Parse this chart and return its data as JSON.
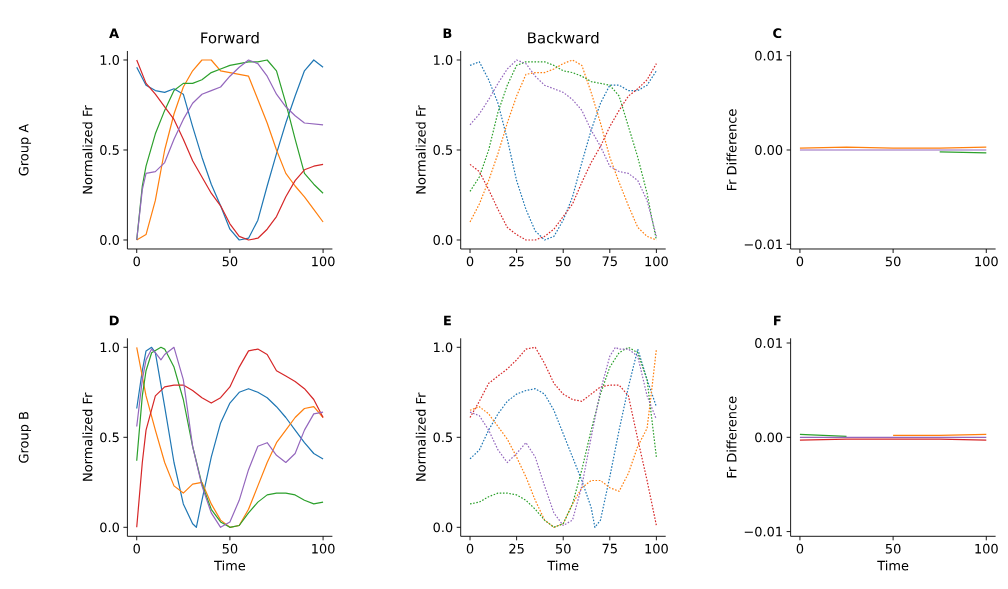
{
  "chart_data": [
    {
      "type": "line",
      "title": "Forward",
      "ylabel": "Normalized Fr",
      "annotations": [
        "A",
        "Group A"
      ],
      "xlim": [
        -5,
        105
      ],
      "ylim": [
        -0.05,
        1.05
      ],
      "xticks": [
        0,
        50,
        100
      ],
      "yticks": [
        {
          "value": 0,
          "label": "0.0"
        },
        {
          "value": 0.5,
          "label": "0.5"
        },
        {
          "value": 1,
          "label": "1.0"
        }
      ],
      "series": [
        {
          "color": "#1f77b4",
          "x": [
            0,
            5,
            10,
            15,
            20,
            25,
            30,
            35,
            40,
            45,
            50,
            55,
            60,
            65,
            70,
            75,
            80,
            85,
            90,
            95,
            100
          ],
          "values": [
            0.96,
            0.86,
            0.83,
            0.82,
            0.84,
            0.81,
            0.63,
            0.46,
            0.31,
            0.19,
            0.06,
            0,
            0.01,
            0.11,
            0.3,
            0.48,
            0.65,
            0.8,
            0.94,
            1.0,
            0.96
          ]
        },
        {
          "color": "#ff7f0e",
          "x": [
            0,
            5,
            10,
            15,
            20,
            25,
            30,
            35,
            40,
            45,
            50,
            55,
            60,
            65,
            70,
            75,
            80,
            85,
            90,
            95,
            100
          ],
          "values": [
            0,
            0.03,
            0.22,
            0.5,
            0.7,
            0.85,
            0.94,
            1.0,
            1.0,
            0.94,
            0.93,
            0.92,
            0.91,
            0.78,
            0.65,
            0.5,
            0.37,
            0.3,
            0.24,
            0.17,
            0.1
          ]
        },
        {
          "color": "#2ca02c",
          "x": [
            0,
            3,
            5,
            10,
            15,
            20,
            25,
            30,
            35,
            40,
            45,
            50,
            55,
            60,
            65,
            70,
            75,
            80,
            85,
            90,
            95,
            100
          ],
          "values": [
            0,
            0.3,
            0.41,
            0.59,
            0.72,
            0.83,
            0.87,
            0.87,
            0.89,
            0.93,
            0.95,
            0.97,
            0.98,
            0.99,
            0.99,
            1.0,
            0.94,
            0.76,
            0.56,
            0.37,
            0.31,
            0.26
          ]
        },
        {
          "color": "#d62728",
          "x": [
            0,
            5,
            10,
            15,
            20,
            25,
            30,
            35,
            40,
            45,
            50,
            55,
            60,
            65,
            70,
            75,
            80,
            85,
            90,
            95,
            100
          ],
          "values": [
            1.0,
            0.87,
            0.81,
            0.74,
            0.67,
            0.56,
            0.44,
            0.35,
            0.26,
            0.19,
            0.09,
            0.02,
            0,
            0.01,
            0.06,
            0.13,
            0.24,
            0.33,
            0.39,
            0.41,
            0.42
          ]
        },
        {
          "color": "#9467bd",
          "x": [
            0,
            3,
            5,
            10,
            15,
            20,
            25,
            30,
            35,
            40,
            45,
            50,
            55,
            60,
            65,
            70,
            75,
            80,
            85,
            90,
            100
          ],
          "values": [
            0,
            0.28,
            0.37,
            0.38,
            0.43,
            0.56,
            0.67,
            0.76,
            0.81,
            0.83,
            0.85,
            0.91,
            0.96,
            1.0,
            0.98,
            0.91,
            0.81,
            0.74,
            0.69,
            0.65,
            0.64
          ]
        }
      ]
    },
    {
      "type": "line",
      "title": "Backward",
      "ylabel": "Normalized Fr",
      "annotations": [
        "B"
      ],
      "line_style": "dotted",
      "xlim": [
        -5,
        105
      ],
      "ylim": [
        -0.05,
        1.05
      ],
      "xticks": [
        0,
        25,
        50,
        75,
        100
      ],
      "yticks": [
        {
          "value": 0,
          "label": "0.0"
        },
        {
          "value": 0.5,
          "label": "0.5"
        },
        {
          "value": 1,
          "label": "1.0"
        }
      ],
      "series": [
        {
          "color": "#1f77b4",
          "x": [
            0,
            5,
            10,
            15,
            20,
            25,
            30,
            35,
            40,
            45,
            50,
            55,
            60,
            65,
            70,
            75,
            80,
            85,
            90,
            95,
            100
          ],
          "values": [
            0.97,
            0.99,
            0.89,
            0.76,
            0.56,
            0.33,
            0.17,
            0.05,
            0,
            0.02,
            0.11,
            0.24,
            0.43,
            0.61,
            0.76,
            0.86,
            0.86,
            0.83,
            0.83,
            0.86,
            0.94
          ]
        },
        {
          "color": "#ff7f0e",
          "x": [
            0,
            5,
            10,
            15,
            20,
            25,
            30,
            35,
            40,
            45,
            50,
            55,
            60,
            65,
            70,
            75,
            80,
            85,
            90,
            95,
            100
          ],
          "values": [
            0.1,
            0.2,
            0.33,
            0.48,
            0.65,
            0.8,
            0.92,
            0.93,
            0.93,
            0.95,
            0.98,
            1.0,
            0.97,
            0.82,
            0.65,
            0.46,
            0.32,
            0.19,
            0.07,
            0.02,
            0
          ]
        },
        {
          "color": "#2ca02c",
          "x": [
            0,
            5,
            10,
            15,
            20,
            25,
            30,
            35,
            40,
            45,
            50,
            55,
            60,
            65,
            70,
            75,
            80,
            85,
            90,
            95,
            97,
            100
          ],
          "values": [
            0.27,
            0.35,
            0.5,
            0.71,
            0.86,
            0.97,
            0.99,
            0.99,
            0.99,
            0.97,
            0.94,
            0.93,
            0.91,
            0.88,
            0.87,
            0.86,
            0.8,
            0.63,
            0.46,
            0.26,
            0.15,
            0
          ]
        },
        {
          "color": "#d62728",
          "x": [
            0,
            5,
            10,
            15,
            20,
            25,
            30,
            35,
            40,
            45,
            50,
            55,
            60,
            65,
            70,
            75,
            80,
            85,
            90,
            95,
            100
          ],
          "values": [
            0.42,
            0.38,
            0.28,
            0.17,
            0.07,
            0.03,
            0,
            0,
            0.02,
            0.06,
            0.13,
            0.2,
            0.32,
            0.43,
            0.52,
            0.63,
            0.72,
            0.8,
            0.84,
            0.89,
            0.98
          ]
        },
        {
          "color": "#9467bd",
          "x": [
            0,
            5,
            10,
            15,
            20,
            25,
            30,
            35,
            40,
            45,
            50,
            55,
            60,
            65,
            70,
            75,
            80,
            85,
            90,
            95,
            100
          ],
          "values": [
            0.64,
            0.7,
            0.78,
            0.87,
            0.95,
            1.0,
            0.98,
            0.91,
            0.86,
            0.84,
            0.82,
            0.78,
            0.72,
            0.61,
            0.52,
            0.41,
            0.38,
            0.37,
            0.33,
            0.22,
            0.02
          ]
        }
      ]
    },
    {
      "type": "line",
      "ylabel": "Fr Difference",
      "annotations": [
        "C"
      ],
      "xlim": [
        -5,
        105
      ],
      "ylim": [
        -0.0105,
        0.0105
      ],
      "xticks": [
        0,
        50,
        100
      ],
      "yticks": [
        {
          "value": -0.01,
          "label": "−0.01"
        },
        {
          "value": 0,
          "label": "0.00"
        },
        {
          "value": 0.01,
          "label": "0.01"
        }
      ],
      "x": [
        0,
        25,
        50,
        75,
        100
      ],
      "series": [
        {
          "color": "#1f77b4",
          "values": [
            null,
            null,
            null,
            null,
            null
          ]
        },
        {
          "color": "#ff7f0e",
          "values": [
            0.0002,
            0.0003,
            0.0002,
            0.0002,
            0.0003
          ]
        },
        {
          "color": "#2ca02c",
          "values": [
            null,
            null,
            null,
            -0.0002,
            -0.0003
          ]
        },
        {
          "color": "#d62728",
          "values": [
            null,
            null,
            null,
            null,
            null
          ]
        },
        {
          "color": "#9467bd",
          "values": [
            0,
            0,
            0,
            0,
            0
          ]
        }
      ]
    },
    {
      "type": "line",
      "xlabel": "Time",
      "ylabel": "Normalized Fr",
      "annotations": [
        "D",
        "Group B"
      ],
      "xlim": [
        -5,
        105
      ],
      "ylim": [
        -0.05,
        1.05
      ],
      "xticks": [
        0,
        50,
        100
      ],
      "yticks": [
        {
          "value": 0,
          "label": "0.0"
        },
        {
          "value": 0.5,
          "label": "0.5"
        },
        {
          "value": 1,
          "label": "1.0"
        }
      ],
      "series": [
        {
          "color": "#1f77b4",
          "x": [
            0,
            3,
            5,
            8,
            10,
            15,
            20,
            25,
            30,
            32,
            35,
            40,
            45,
            50,
            55,
            60,
            65,
            70,
            75,
            80,
            85,
            90,
            95,
            100
          ],
          "values": [
            0.66,
            0.87,
            0.98,
            1.0,
            0.97,
            0.67,
            0.36,
            0.13,
            0.02,
            0,
            0.15,
            0.39,
            0.58,
            0.69,
            0.75,
            0.77,
            0.75,
            0.72,
            0.67,
            0.61,
            0.54,
            0.47,
            0.41,
            0.38
          ]
        },
        {
          "color": "#ff7f0e",
          "x": [
            0,
            5,
            10,
            15,
            20,
            25,
            30,
            35,
            40,
            45,
            50,
            55,
            60,
            65,
            70,
            75,
            80,
            85,
            90,
            95,
            100
          ],
          "values": [
            1.0,
            0.73,
            0.54,
            0.36,
            0.23,
            0.19,
            0.24,
            0.25,
            0.13,
            0.04,
            0,
            0.01,
            0.1,
            0.23,
            0.36,
            0.47,
            0.54,
            0.61,
            0.66,
            0.67,
            0.61
          ]
        },
        {
          "color": "#2ca02c",
          "x": [
            0,
            3,
            5,
            8,
            13,
            15,
            20,
            25,
            30,
            35,
            40,
            45,
            50,
            55,
            60,
            65,
            70,
            75,
            80,
            85,
            90,
            95,
            100
          ],
          "values": [
            0.37,
            0.73,
            0.87,
            0.97,
            1.0,
            0.99,
            0.89,
            0.71,
            0.45,
            0.24,
            0.1,
            0.03,
            0,
            0.01,
            0.08,
            0.14,
            0.18,
            0.19,
            0.19,
            0.18,
            0.15,
            0.13,
            0.14
          ]
        },
        {
          "color": "#d62728",
          "x": [
            0,
            3,
            5,
            10,
            15,
            20,
            25,
            30,
            35,
            40,
            45,
            50,
            55,
            60,
            65,
            70,
            75,
            80,
            85,
            90,
            95,
            100
          ],
          "values": [
            0,
            0.36,
            0.54,
            0.73,
            0.78,
            0.79,
            0.79,
            0.76,
            0.72,
            0.69,
            0.72,
            0.78,
            0.89,
            0.98,
            0.99,
            0.96,
            0.87,
            0.84,
            0.81,
            0.77,
            0.71,
            0.61
          ]
        },
        {
          "color": "#9467bd",
          "x": [
            0,
            3,
            5,
            8,
            10,
            13,
            15,
            20,
            25,
            30,
            35,
            40,
            45,
            50,
            55,
            60,
            65,
            70,
            75,
            80,
            85,
            90,
            95,
            100
          ],
          "values": [
            0.56,
            0.82,
            0.93,
            0.99,
            0.97,
            0.93,
            0.96,
            1.0,
            0.82,
            0.45,
            0.23,
            0.08,
            0,
            0.03,
            0.15,
            0.32,
            0.45,
            0.47,
            0.4,
            0.36,
            0.41,
            0.54,
            0.63,
            0.64
          ]
        }
      ]
    },
    {
      "type": "line",
      "xlabel": "Time",
      "ylabel": "Normalized Fr",
      "annotations": [
        "E"
      ],
      "line_style": "dotted",
      "xlim": [
        -5,
        105
      ],
      "ylim": [
        -0.05,
        1.05
      ],
      "xticks": [
        0,
        25,
        50,
        75,
        100
      ],
      "yticks": [
        {
          "value": 0,
          "label": "0.0"
        },
        {
          "value": 0.5,
          "label": "0.5"
        },
        {
          "value": 1,
          "label": "1.0"
        }
      ],
      "series": [
        {
          "color": "#d62728",
          "x": [
            0,
            5,
            10,
            15,
            20,
            25,
            30,
            35,
            40,
            45,
            50,
            55,
            60,
            65,
            70,
            75,
            80,
            85,
            90,
            95,
            100
          ],
          "values": [
            0.61,
            0.7,
            0.8,
            0.84,
            0.88,
            0.93,
            0.99,
            1.0,
            0.91,
            0.8,
            0.74,
            0.71,
            0.7,
            0.74,
            0.78,
            0.79,
            0.79,
            0.73,
            0.49,
            0.26,
            0.01
          ]
        },
        {
          "color": "#1f77b4",
          "x": [
            0,
            5,
            10,
            15,
            20,
            25,
            30,
            35,
            40,
            45,
            50,
            55,
            60,
            65,
            67,
            70,
            75,
            80,
            85,
            90,
            95,
            100
          ],
          "values": [
            0.38,
            0.43,
            0.54,
            0.63,
            0.7,
            0.74,
            0.76,
            0.77,
            0.74,
            0.65,
            0.52,
            0.39,
            0.26,
            0.11,
            0,
            0.04,
            0.28,
            0.54,
            0.78,
            0.99,
            0.82,
            0.67
          ]
        },
        {
          "color": "#ff7f0e",
          "x": [
            0,
            5,
            10,
            15,
            20,
            25,
            30,
            35,
            40,
            45,
            50,
            55,
            60,
            65,
            70,
            75,
            80,
            85,
            90,
            95,
            97,
            100
          ],
          "values": [
            0.65,
            0.67,
            0.63,
            0.56,
            0.49,
            0.39,
            0.28,
            0.15,
            0.04,
            0,
            0.02,
            0.13,
            0.22,
            0.26,
            0.26,
            0.22,
            0.2,
            0.3,
            0.45,
            0.55,
            0.72,
            0.99
          ]
        },
        {
          "color": "#2ca02c",
          "x": [
            0,
            5,
            10,
            15,
            20,
            25,
            30,
            35,
            40,
            45,
            50,
            55,
            60,
            65,
            70,
            75,
            80,
            85,
            90,
            95,
            100
          ],
          "values": [
            0.13,
            0.14,
            0.17,
            0.19,
            0.19,
            0.18,
            0.15,
            0.1,
            0.04,
            0,
            0.02,
            0.13,
            0.32,
            0.54,
            0.74,
            0.89,
            0.97,
            1.0,
            0.97,
            0.82,
            0.39
          ]
        },
        {
          "color": "#9467bd",
          "x": [
            0,
            5,
            10,
            15,
            20,
            25,
            30,
            35,
            40,
            45,
            50,
            55,
            60,
            65,
            70,
            75,
            78,
            80,
            85,
            90,
            95,
            100
          ],
          "values": [
            0.64,
            0.62,
            0.54,
            0.43,
            0.36,
            0.41,
            0.47,
            0.39,
            0.23,
            0.08,
            0.01,
            0.04,
            0.23,
            0.5,
            0.76,
            0.95,
            1.0,
            0.99,
            0.99,
            0.95,
            0.73,
            0.6
          ]
        }
      ]
    },
    {
      "type": "line",
      "xlabel": "Time",
      "ylabel": "Fr Difference",
      "annotations": [
        "F"
      ],
      "xlim": [
        -5,
        105
      ],
      "ylim": [
        -0.0105,
        0.0105
      ],
      "xticks": [
        0,
        50,
        100
      ],
      "yticks": [
        {
          "value": -0.01,
          "label": "−0.01"
        },
        {
          "value": 0,
          "label": "0.00"
        },
        {
          "value": 0.01,
          "label": "0.01"
        }
      ],
      "x": [
        0,
        25,
        50,
        75,
        100
      ],
      "series": [
        {
          "color": "#1f77b4",
          "values": [
            null,
            null,
            null,
            null,
            null
          ]
        },
        {
          "color": "#ff7f0e",
          "values": [
            null,
            null,
            0.0002,
            0.0002,
            0.0003
          ]
        },
        {
          "color": "#2ca02c",
          "values": [
            0.0003,
            0.0001,
            null,
            null,
            null
          ]
        },
        {
          "color": "#d62728",
          "values": [
            -0.0003,
            -0.0002,
            -0.0002,
            -0.0002,
            -0.0003
          ]
        },
        {
          "color": "#9467bd",
          "values": [
            0,
            0,
            0,
            0,
            0
          ]
        }
      ]
    }
  ]
}
